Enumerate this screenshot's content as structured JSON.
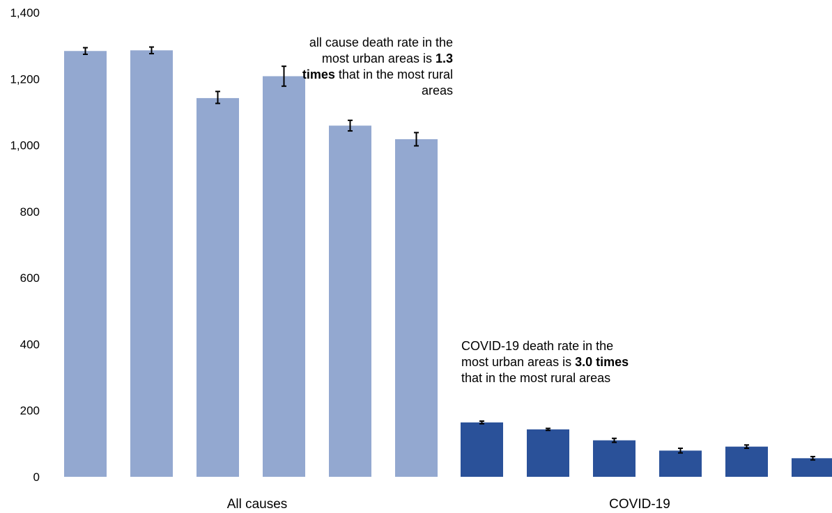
{
  "chart_data": {
    "type": "bar",
    "groups": [
      {
        "label": "All causes",
        "color": "#93a8d0",
        "values": [
          1284,
          1286,
          1142,
          1208,
          1059,
          1018
        ],
        "error_low": [
          1274,
          1276,
          1126,
          1178,
          1043,
          998
        ],
        "error_high": [
          1294,
          1296,
          1162,
          1238,
          1075,
          1038
        ]
      },
      {
        "label": "COVID-19",
        "color": "#2a5199",
        "values": [
          164,
          143,
          110,
          79,
          91,
          56
        ],
        "error_low": [
          160,
          140,
          104,
          72,
          86,
          51
        ],
        "error_high": [
          168,
          146,
          116,
          86,
          96,
          61
        ]
      }
    ],
    "ylim": [
      0,
      1400
    ],
    "yticks": [
      "0",
      "200",
      "400",
      "600",
      "800",
      "1,000",
      "1,200",
      "1,400"
    ],
    "ytick_values": [
      0,
      200,
      400,
      600,
      800,
      1000,
      1200,
      1400
    ],
    "grid": false,
    "annotations": [
      {
        "id": "all-causes",
        "pre": "all cause death rate in the most urban areas is ",
        "bold": "1.3 times",
        "post": " that in the most rural areas"
      },
      {
        "id": "covid",
        "pre": "COVID-19 death rate in the most urban areas is ",
        "bold": "3.0 times",
        "post": " that in the most rural areas"
      }
    ]
  }
}
